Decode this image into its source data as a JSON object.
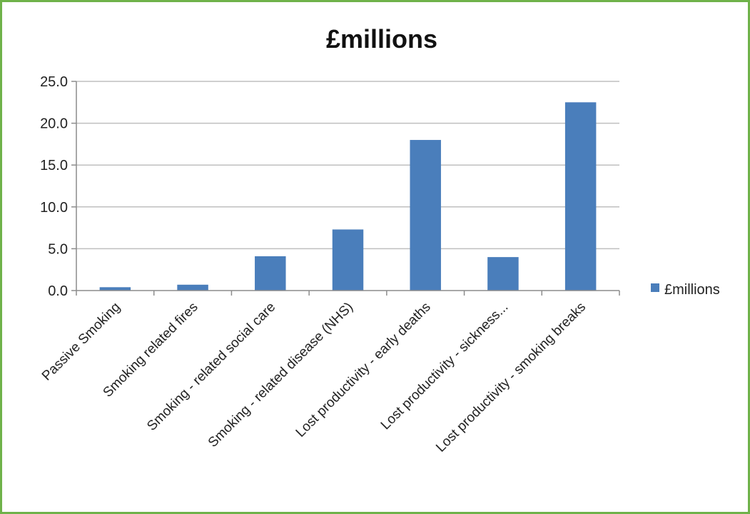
{
  "chart_data": {
    "type": "bar",
    "title": "£millions",
    "categories": [
      "Passive Smoking",
      "Smoking related fires",
      "Smoking - related social care",
      "Smoking - related disease (NHS)",
      "Lost productivity - early deaths",
      "Lost productivity - sickness...",
      "Lost productivity - smoking breaks"
    ],
    "series": [
      {
        "name": "£millions",
        "values": [
          0.4,
          0.7,
          4.1,
          7.3,
          18.0,
          4.0,
          22.5
        ]
      }
    ],
    "yticks": [
      "0.0",
      "5.0",
      "10.0",
      "15.0",
      "20.0",
      "25.0"
    ],
    "ylim": [
      0,
      25
    ],
    "grid": true,
    "legend": "right",
    "colors": {
      "bar": "#4a7ebb",
      "grid": "#bfbfbf",
      "axis": "#8c8c8c",
      "frame": "#6fb24a"
    }
  }
}
